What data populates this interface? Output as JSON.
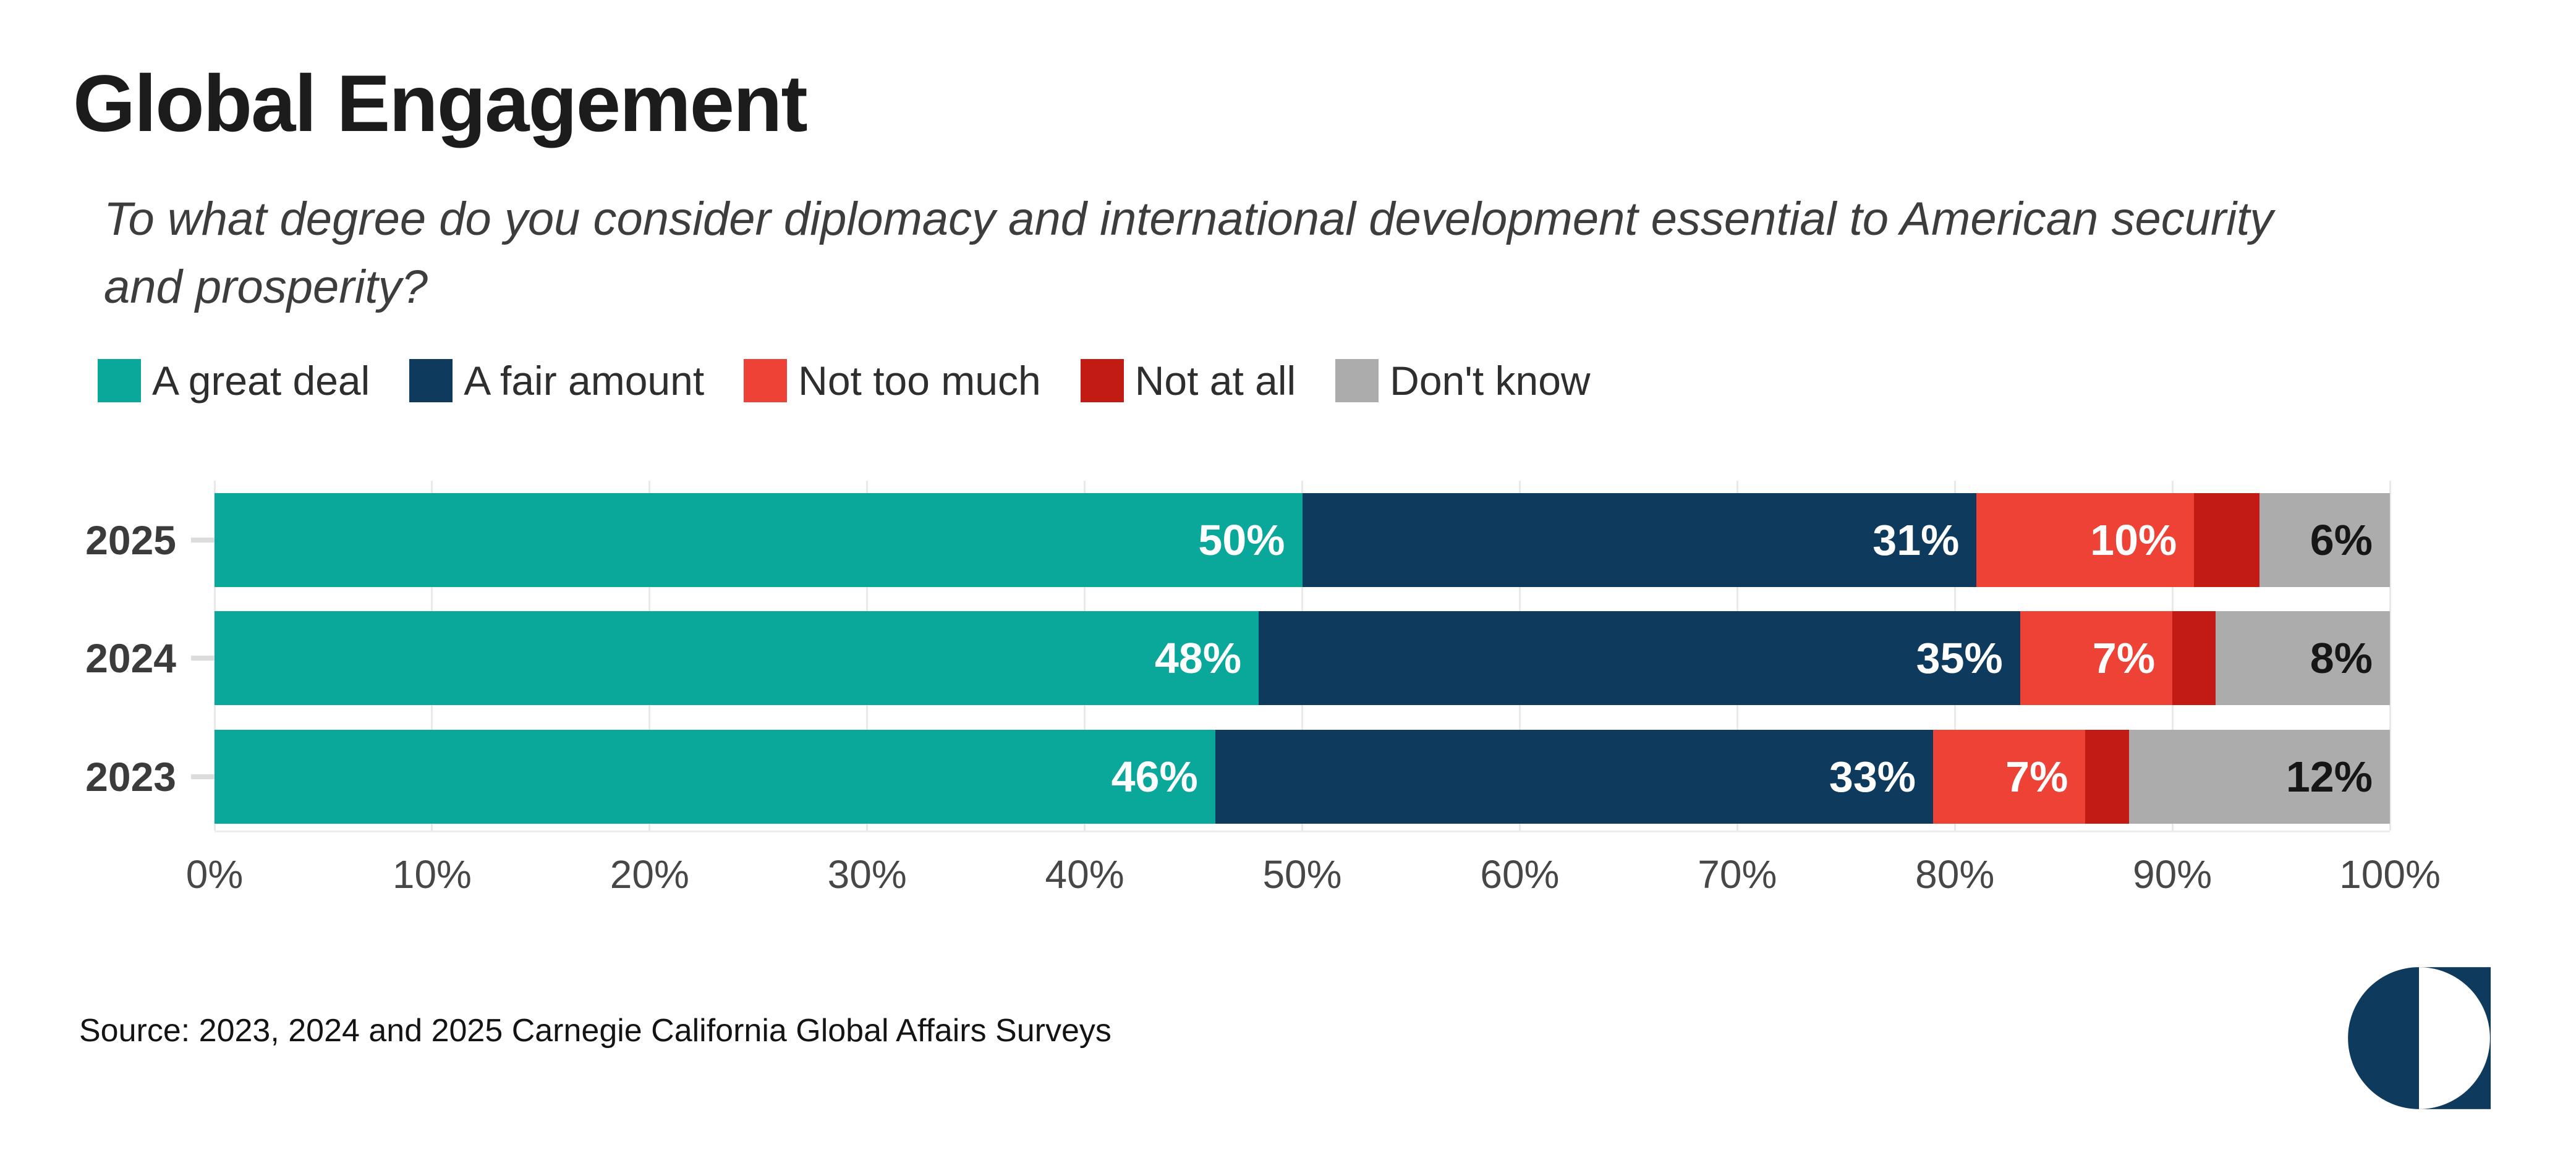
{
  "title": "Global Engagement",
  "subtitle": "To what degree do you consider diplomacy and international development essential to American security and prosperity?",
  "source": "Source: 2023, 2024 and 2025 Carnegie California Global Affairs Surveys",
  "logo": {
    "name": "carnegie-half-circle-logo",
    "color": "#0e3a5d"
  },
  "colors": {
    "a_great_deal": "#0aa79b",
    "a_fair_amount": "#0e3a5d",
    "not_too_much": "#ee4237",
    "not_at_all": "#c21b14",
    "dont_know": "#acacac",
    "gridline": "#e9e9e9"
  },
  "chart_data": {
    "type": "bar",
    "stacked": true,
    "orientation": "horizontal",
    "title": "Global Engagement",
    "xlabel": "",
    "ylabel": "",
    "xlim": [
      0,
      100
    ],
    "tick_step": 10,
    "xticks": [
      "0%",
      "10%",
      "20%",
      "30%",
      "40%",
      "50%",
      "60%",
      "70%",
      "80%",
      "90%",
      "100%"
    ],
    "categories": [
      "2025",
      "2024",
      "2023"
    ],
    "series": [
      {
        "name": "A great deal",
        "color": "#0aa79b",
        "label_color": "#ffffff",
        "values": [
          50,
          48,
          46
        ]
      },
      {
        "name": "A fair amount",
        "color": "#0e3a5d",
        "label_color": "#ffffff",
        "values": [
          31,
          35,
          33
        ]
      },
      {
        "name": "Not too much",
        "color": "#ee4237",
        "label_color": "#ffffff",
        "values": [
          10,
          7,
          7
        ]
      },
      {
        "name": "Not at all",
        "color": "#c21b14",
        "label_color": "#ffffff",
        "values": [
          3,
          2,
          2
        ]
      },
      {
        "name": "Don't know",
        "color": "#acacac",
        "label_color": "#161616",
        "values": [
          6,
          8,
          12
        ]
      }
    ],
    "value_suffix": "%",
    "bar_label_min": 5,
    "legend_position": "top",
    "grid": true
  }
}
